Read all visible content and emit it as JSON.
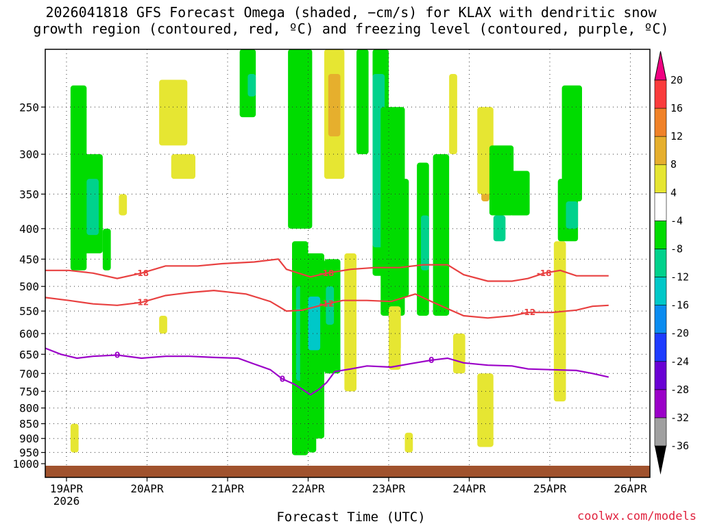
{
  "chart_data": {
    "type": "heatmap",
    "title_line1": "2026041818 GFS Forecast Omega (shaded, −cm/s) for KLAX with dendritic snow",
    "title_line2": "growth region (contoured, red, ºC) and freezing level (contoured, purple, ºC)",
    "xlabel": "Forecast Time (UTC)",
    "x_ticks": [
      "19APR",
      "20APR",
      "21APR",
      "22APR",
      "23APR",
      "24APR",
      "25APR",
      "26APR"
    ],
    "x_year": "2026",
    "y_ticks": [
      250,
      300,
      350,
      400,
      450,
      500,
      550,
      600,
      650,
      700,
      750,
      800,
      850,
      900,
      950,
      1000
    ],
    "ylim": [
      200,
      1000
    ],
    "y_scale": "log-pressure",
    "grid": true,
    "colorbar": {
      "levels": [
        -36,
        -32,
        -28,
        -24,
        -20,
        -16,
        -12,
        -8,
        -4,
        4,
        8,
        12,
        16,
        20
      ],
      "colors": [
        "#a0a0a0",
        "#9b00c8",
        "#6a00d4",
        "#1e3cff",
        "#0a8cf0",
        "#00c8c8",
        "#00d28c",
        "#00dc00",
        "#ffffff",
        "#e6e632",
        "#e6af2d",
        "#f08228",
        "#fa3c3c",
        "#f00082"
      ]
    },
    "contours": [
      {
        "name": "-18",
        "color": "#e84040",
        "points": [
          [
            0,
            470
          ],
          [
            0.3,
            470
          ],
          [
            0.6,
            475
          ],
          [
            0.9,
            485
          ],
          [
            1.2,
            475
          ],
          [
            1.5,
            462
          ],
          [
            1.9,
            462
          ],
          [
            2.2,
            458
          ],
          [
            2.6,
            455
          ],
          [
            2.9,
            450
          ],
          [
            3.0,
            468
          ],
          [
            3.3,
            482
          ],
          [
            3.5,
            475
          ],
          [
            3.8,
            468
          ],
          [
            4.1,
            465
          ],
          [
            4.4,
            465
          ],
          [
            4.7,
            460
          ],
          [
            5.0,
            460
          ],
          [
            5.2,
            478
          ],
          [
            5.5,
            490
          ],
          [
            5.8,
            490
          ],
          [
            6.0,
            485
          ],
          [
            6.2,
            475
          ],
          [
            6.4,
            470
          ],
          [
            6.6,
            480
          ],
          [
            6.8,
            480
          ],
          [
            7.0,
            480
          ]
        ]
      },
      {
        "name": "-12",
        "color": "#e84040",
        "points": [
          [
            0,
            522
          ],
          [
            0.3,
            528
          ],
          [
            0.6,
            535
          ],
          [
            0.9,
            538
          ],
          [
            1.2,
            532
          ],
          [
            1.5,
            518
          ],
          [
            1.8,
            512
          ],
          [
            2.1,
            508
          ],
          [
            2.5,
            515
          ],
          [
            2.8,
            530
          ],
          [
            3.0,
            550
          ],
          [
            3.2,
            548
          ],
          [
            3.5,
            535
          ],
          [
            3.7,
            528
          ],
          [
            4.0,
            528
          ],
          [
            4.3,
            530
          ],
          [
            4.6,
            515
          ],
          [
            4.8,
            530
          ],
          [
            5.0,
            545
          ],
          [
            5.2,
            560
          ],
          [
            5.5,
            565
          ],
          [
            5.8,
            560
          ],
          [
            6.0,
            553
          ],
          [
            6.3,
            553
          ],
          [
            6.6,
            548
          ],
          [
            6.8,
            540
          ],
          [
            7.0,
            538
          ]
        ]
      },
      {
        "name": "0",
        "color": "#9b00c8",
        "points": [
          [
            0,
            635
          ],
          [
            0.2,
            650
          ],
          [
            0.4,
            660
          ],
          [
            0.6,
            655
          ],
          [
            0.9,
            652
          ],
          [
            1.2,
            660
          ],
          [
            1.5,
            655
          ],
          [
            1.8,
            655
          ],
          [
            2.1,
            658
          ],
          [
            2.4,
            660
          ],
          [
            2.6,
            675
          ],
          [
            2.8,
            690
          ],
          [
            2.95,
            715
          ],
          [
            3.1,
            730
          ],
          [
            3.3,
            760
          ],
          [
            3.4,
            745
          ],
          [
            3.5,
            725
          ],
          [
            3.6,
            695
          ],
          [
            3.8,
            688
          ],
          [
            4.0,
            680
          ],
          [
            4.3,
            683
          ],
          [
            4.6,
            672
          ],
          [
            4.8,
            665
          ],
          [
            5.0,
            660
          ],
          [
            5.2,
            672
          ],
          [
            5.5,
            678
          ],
          [
            5.8,
            680
          ],
          [
            6.0,
            688
          ],
          [
            6.3,
            690
          ],
          [
            6.6,
            692
          ],
          [
            6.8,
            700
          ],
          [
            7.0,
            710
          ]
        ]
      }
    ]
  },
  "credit": "coolwx.com/models"
}
